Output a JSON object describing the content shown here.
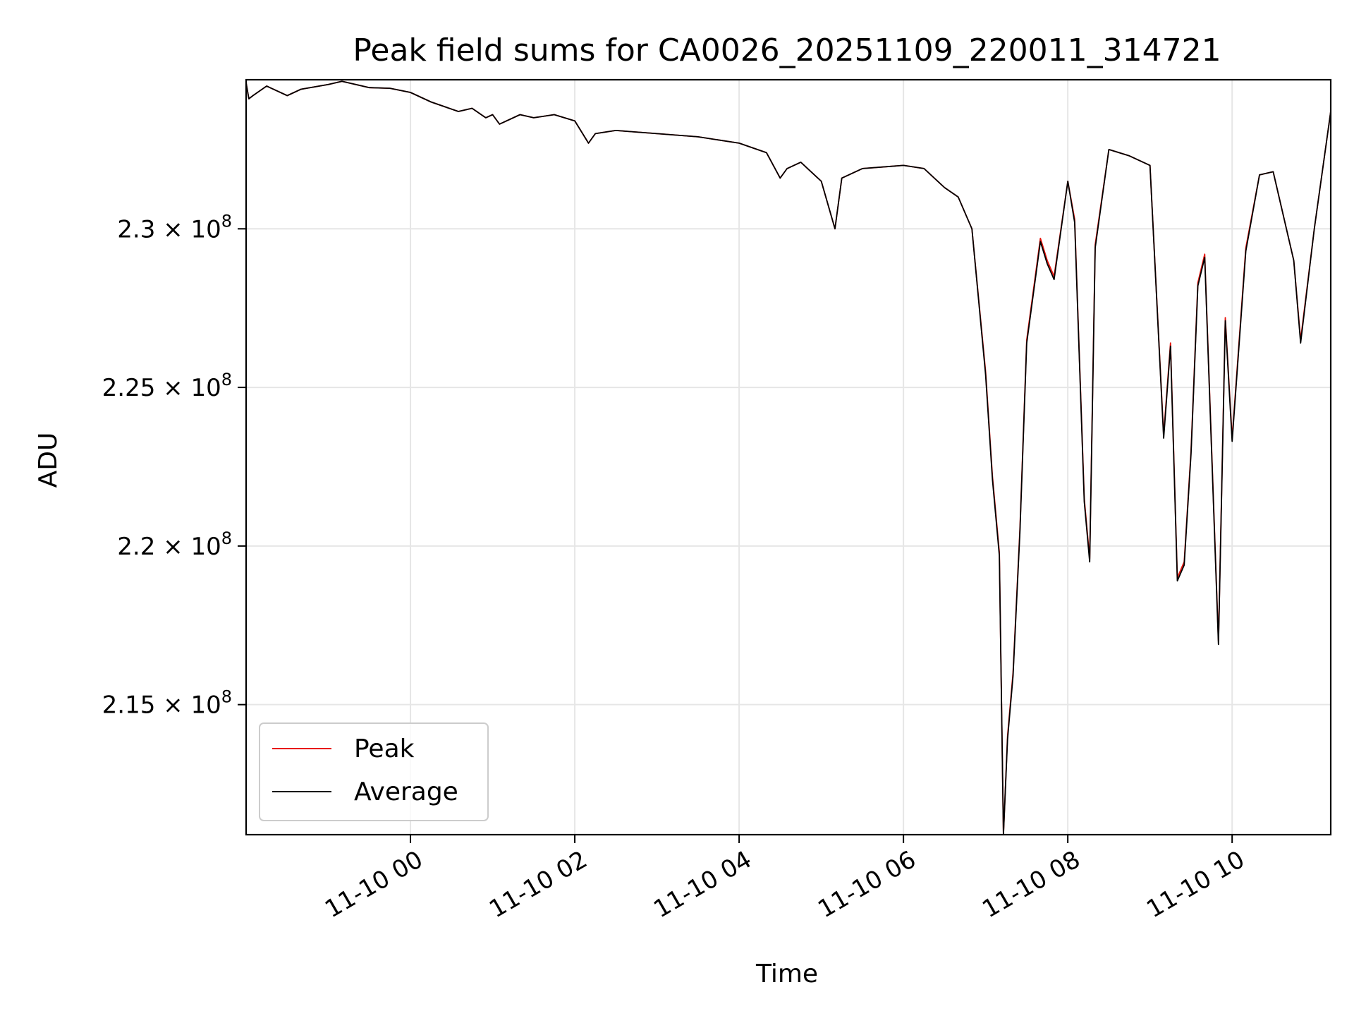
{
  "chart_data": {
    "type": "line",
    "title": "Peak field sums for CA0026_20251109_220011_314721",
    "xlabel": "Time",
    "ylabel": "ADU",
    "x_range": [
      "2025-11-09 22:00",
      "2025-11-10 11:12"
    ],
    "ylim": [
      210900000,
      234700000
    ],
    "x_ticks": [
      {
        "value": "2025-11-10 00:00",
        "label": "11-10 00"
      },
      {
        "value": "2025-11-10 02:00",
        "label": "11-10 02"
      },
      {
        "value": "2025-11-10 04:00",
        "label": "11-10 04"
      },
      {
        "value": "2025-11-10 06:00",
        "label": "11-10 06"
      },
      {
        "value": "2025-11-10 08:00",
        "label": "11-10 08"
      },
      {
        "value": "2025-11-10 10:00",
        "label": "11-10 10"
      }
    ],
    "y_ticks": [
      {
        "value": 215000000,
        "mantissa": "2.15",
        "exponent": "8"
      },
      {
        "value": 220000000,
        "mantissa": "2.2",
        "exponent": "8"
      },
      {
        "value": 225000000,
        "mantissa": "2.25",
        "exponent": "8"
      },
      {
        "value": 230000000,
        "mantissa": "2.3",
        "exponent": "8"
      }
    ],
    "grid": true,
    "legend_position": "lower-left",
    "x": [
      "2025-11-09 22:00",
      "2025-11-09 22:02",
      "2025-11-09 22:05",
      "2025-11-09 22:15",
      "2025-11-09 22:30",
      "2025-11-09 22:40",
      "2025-11-09 23:00",
      "2025-11-09 23:10",
      "2025-11-09 23:30",
      "2025-11-09 23:45",
      "2025-11-10 00:00",
      "2025-11-10 00:15",
      "2025-11-10 00:35",
      "2025-11-10 00:45",
      "2025-11-10 00:55",
      "2025-11-10 01:00",
      "2025-11-10 01:05",
      "2025-11-10 01:20",
      "2025-11-10 01:30",
      "2025-11-10 01:45",
      "2025-11-10 02:00",
      "2025-11-10 02:10",
      "2025-11-10 02:15",
      "2025-11-10 02:30",
      "2025-11-10 03:00",
      "2025-11-10 03:30",
      "2025-11-10 04:00",
      "2025-11-10 04:20",
      "2025-11-10 04:30",
      "2025-11-10 04:35",
      "2025-11-10 04:45",
      "2025-11-10 05:00",
      "2025-11-10 05:10",
      "2025-11-10 05:15",
      "2025-11-10 05:30",
      "2025-11-10 06:00",
      "2025-11-10 06:15",
      "2025-11-10 06:30",
      "2025-11-10 06:40",
      "2025-11-10 06:50",
      "2025-11-10 07:00",
      "2025-11-10 07:05",
      "2025-11-10 07:10",
      "2025-11-10 07:13",
      "2025-11-10 07:16",
      "2025-11-10 07:20",
      "2025-11-10 07:25",
      "2025-11-10 07:30",
      "2025-11-10 07:40",
      "2025-11-10 07:45",
      "2025-11-10 07:50",
      "2025-11-10 08:00",
      "2025-11-10 08:05",
      "2025-11-10 08:12",
      "2025-11-10 08:16",
      "2025-11-10 08:20",
      "2025-11-10 08:30",
      "2025-11-10 08:45",
      "2025-11-10 09:00",
      "2025-11-10 09:10",
      "2025-11-10 09:15",
      "2025-11-10 09:20",
      "2025-11-10 09:25",
      "2025-11-10 09:30",
      "2025-11-10 09:35",
      "2025-11-10 09:40",
      "2025-11-10 09:50",
      "2025-11-10 09:55",
      "2025-11-10 10:00",
      "2025-11-10 10:10",
      "2025-11-10 10:20",
      "2025-11-10 10:30",
      "2025-11-10 10:45",
      "2025-11-10 10:50",
      "2025-11-10 11:00",
      "2025-11-10 11:12"
    ],
    "series": [
      {
        "name": "Peak",
        "color": "#e8140c",
        "values": [
          234600000,
          234100000,
          234200000,
          234500000,
          234200000,
          234400000,
          234550000,
          234650000,
          234450000,
          234430000,
          234300000,
          234000000,
          233700000,
          233800000,
          233500000,
          233600000,
          233300000,
          233600000,
          233500000,
          233600000,
          233400000,
          232700000,
          233000000,
          233100000,
          233000000,
          232900000,
          232700000,
          232400000,
          231600000,
          231900000,
          232100000,
          231500000,
          230000000,
          231600000,
          231900000,
          232000000,
          231900000,
          231300000,
          231000000,
          230000000,
          225500000,
          222200000,
          219800000,
          210900000,
          214000000,
          216000000,
          220500000,
          226500000,
          229700000,
          229000000,
          228500000,
          231500000,
          230300000,
          221500000,
          219600000,
          229500000,
          232500000,
          232300000,
          232000000,
          223500000,
          226400000,
          219000000,
          219500000,
          223000000,
          228300000,
          229200000,
          217000000,
          227200000,
          223400000,
          229400000,
          231700000,
          231800000,
          229000000,
          226500000,
          230000000,
          233700000
        ]
      },
      {
        "name": "Average",
        "color": "#000000",
        "values": [
          234600000,
          234100000,
          234200000,
          234500000,
          234200000,
          234400000,
          234550000,
          234650000,
          234450000,
          234430000,
          234300000,
          234000000,
          233700000,
          233800000,
          233500000,
          233600000,
          233300000,
          233600000,
          233500000,
          233600000,
          233400000,
          232700000,
          233000000,
          233100000,
          233000000,
          232900000,
          232700000,
          232400000,
          231600000,
          231900000,
          232100000,
          231500000,
          230000000,
          231600000,
          231900000,
          232000000,
          231900000,
          231300000,
          231000000,
          230000000,
          225400000,
          222100000,
          219700000,
          210900000,
          213900000,
          215900000,
          220400000,
          226400000,
          229600000,
          228900000,
          228400000,
          231500000,
          230200000,
          221400000,
          219500000,
          229400000,
          232500000,
          232300000,
          232000000,
          223400000,
          226300000,
          218900000,
          219400000,
          222900000,
          228200000,
          229100000,
          216900000,
          227100000,
          223300000,
          229300000,
          231700000,
          231800000,
          229000000,
          226400000,
          230000000,
          233700000
        ]
      }
    ]
  }
}
